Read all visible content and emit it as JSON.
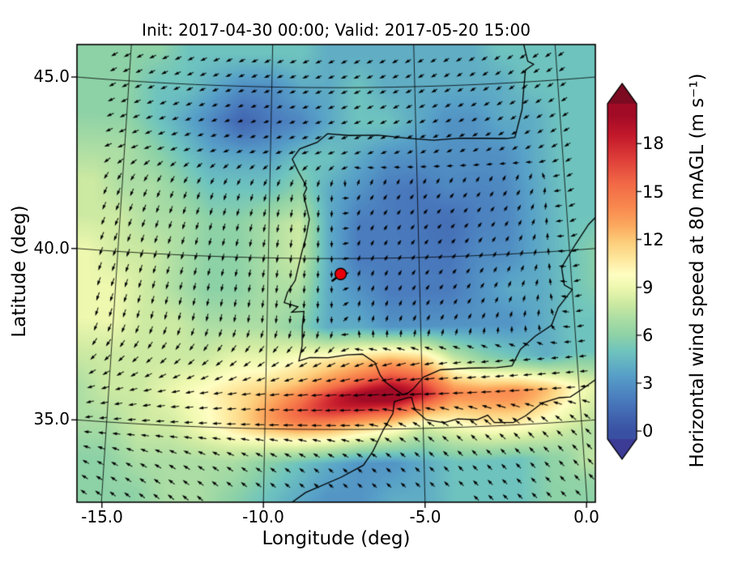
{
  "figure": {
    "title": "Init: 2017-04-30 00:00; Valid: 2017-05-20 15:00",
    "x_axis": {
      "label": "Longitude (deg)",
      "ticks": [
        "-15.0",
        "-10.0",
        "-5.0",
        "0.0"
      ]
    },
    "y_axis": {
      "label": "Latitude (deg)",
      "ticks": [
        "45.0",
        "40.0",
        "35.0"
      ]
    },
    "colorbar": {
      "label": "Horizontal wind speed at 80 mAGL (m s⁻¹)",
      "ticks": [
        "18",
        "15",
        "12",
        "9",
        "6",
        "3",
        "0"
      ]
    }
  },
  "chart_data": {
    "type": "heatmap",
    "title": "Init: 2017-04-30 00:00; Valid: 2017-05-20 15:00",
    "xlabel": "Longitude (deg)",
    "ylabel": "Latitude (deg)",
    "colorbar_label": "Horizontal wind speed at 80 mAGL (m s⁻¹)",
    "units": "m s⁻¹",
    "x_ticks": [
      -15.0,
      -10.0,
      -5.0,
      0.0
    ],
    "y_ticks": [
      35.0,
      40.0,
      45.0
    ],
    "lon_range": [
      -15.8,
      0.3
    ],
    "lat_range": [
      32.9,
      46.2
    ],
    "graticule_lon": [
      -15,
      -10,
      -5,
      0
    ],
    "graticule_lat": [
      35,
      40,
      45
    ],
    "colorbar_ticks": [
      0,
      3,
      6,
      9,
      12,
      15,
      18
    ],
    "colorbar_range": [
      0,
      19.8
    ],
    "colormap_stops": [
      [
        0,
        "#3a51a3"
      ],
      [
        2,
        "#4a7cbe"
      ],
      [
        3.5,
        "#57a0c8"
      ],
      [
        5,
        "#6fc4be"
      ],
      [
        6,
        "#8ed2a6"
      ],
      [
        7,
        "#abdda4"
      ],
      [
        8,
        "#cdeaa2"
      ],
      [
        9,
        "#eef8af"
      ],
      [
        9.8,
        "#fefec2"
      ],
      [
        10.8,
        "#fee79c"
      ],
      [
        11.8,
        "#fdcf7d"
      ],
      [
        12.8,
        "#fcab60"
      ],
      [
        14,
        "#f9894f"
      ],
      [
        15.5,
        "#f26946"
      ],
      [
        17,
        "#df3f3a"
      ],
      [
        18.5,
        "#c3192b"
      ],
      [
        19.8,
        "#a20b26"
      ]
    ],
    "over_color": "#7c0b22",
    "under_color": "#3c3b96",
    "grid_lon": [
      -16,
      -15,
      -14,
      -13,
      -12,
      -11,
      -10,
      -9,
      -8,
      -7,
      -6,
      -5,
      -4,
      -3,
      -2,
      -1,
      0,
      1
    ],
    "grid_lat": [
      46,
      45,
      44,
      43,
      42,
      41,
      40,
      39,
      38,
      37,
      36,
      35,
      34,
      33
    ],
    "wind_speed_ms": [
      [
        6,
        6,
        6,
        5,
        5,
        5,
        5,
        5,
        4,
        4,
        4,
        4,
        4,
        4,
        5,
        5,
        5,
        5
      ],
      [
        6,
        6,
        5,
        5,
        4,
        3,
        3,
        4,
        4,
        5,
        4,
        4,
        4,
        4,
        4,
        5,
        5,
        5
      ],
      [
        6,
        6,
        5,
        4,
        3,
        2,
        3,
        3,
        4,
        5,
        5,
        4,
        3,
        3,
        4,
        4,
        5,
        5
      ],
      [
        7,
        7,
        6,
        5,
        4,
        4,
        4,
        5,
        5,
        4,
        3,
        3,
        3,
        3,
        3,
        4,
        5,
        5
      ],
      [
        8,
        7,
        7,
        6,
        5,
        5,
        5,
        6,
        4,
        3,
        2,
        2,
        3,
        3,
        3,
        4,
        5,
        5
      ],
      [
        8,
        8,
        7,
        7,
        6,
        6,
        7,
        8,
        4,
        2,
        2,
        2,
        2,
        3,
        3,
        4,
        5,
        5
      ],
      [
        9,
        8,
        8,
        7,
        6,
        6,
        7,
        8,
        4,
        2,
        2,
        2,
        2,
        3,
        3,
        4,
        5,
        6
      ],
      [
        9,
        9,
        8,
        7,
        6,
        6,
        7,
        7,
        4,
        3,
        2,
        2,
        2,
        3,
        4,
        4,
        5,
        6
      ],
      [
        9,
        9,
        8,
        8,
        7,
        7,
        7,
        6,
        4,
        4,
        3,
        3,
        3,
        3,
        3,
        4,
        5,
        5
      ],
      [
        8,
        8,
        8,
        8,
        8,
        9,
        9,
        10,
        11,
        12,
        13,
        12,
        8,
        6,
        5,
        4,
        5,
        5
      ],
      [
        7,
        8,
        8,
        9,
        10,
        11,
        12,
        13,
        15,
        17,
        19,
        17,
        13,
        12,
        12,
        11,
        9,
        8
      ],
      [
        7,
        7,
        8,
        8,
        9,
        10,
        11,
        12,
        12,
        11,
        10,
        8,
        9,
        10,
        10,
        9,
        8,
        7
      ],
      [
        6,
        6,
        7,
        7,
        7,
        7,
        6,
        5,
        4,
        3,
        3,
        4,
        5,
        5,
        5,
        6,
        6,
        6
      ],
      [
        6,
        6,
        6,
        7,
        7,
        6,
        5,
        4,
        3,
        3,
        4,
        4,
        5,
        5,
        5,
        6,
        6,
        6
      ]
    ],
    "wind_dir_deg_math": [
      [
        210,
        208,
        206,
        205,
        204,
        203,
        203,
        202,
        202,
        203,
        204,
        205,
        206,
        207,
        208,
        208,
        207,
        206
      ],
      [
        208,
        206,
        205,
        204,
        203,
        202,
        202,
        201,
        201,
        202,
        203,
        204,
        205,
        206,
        207,
        207,
        206,
        205
      ],
      [
        206,
        205,
        204,
        203,
        202,
        201,
        201,
        200,
        200,
        201,
        202,
        203,
        204,
        205,
        206,
        206,
        205,
        204
      ],
      [
        205,
        204,
        203,
        202,
        201,
        200,
        200,
        199,
        199,
        200,
        201,
        202,
        203,
        204,
        205,
        205,
        204,
        203
      ],
      [
        245,
        245,
        246,
        247,
        248,
        250,
        252,
        258,
        262,
        55,
        50,
        48,
        45,
        45,
        48,
        55,
        200,
        200
      ],
      [
        248,
        248,
        249,
        250,
        252,
        254,
        256,
        262,
        265,
        60,
        50,
        45,
        42,
        45,
        50,
        60,
        200,
        195
      ],
      [
        250,
        250,
        251,
        252,
        254,
        256,
        258,
        263,
        267,
        65,
        55,
        48,
        45,
        48,
        55,
        65,
        195,
        190
      ],
      [
        252,
        252,
        253,
        254,
        256,
        258,
        260,
        265,
        268,
        70,
        60,
        50,
        48,
        50,
        60,
        70,
        190,
        188
      ],
      [
        254,
        254,
        255,
        256,
        258,
        260,
        262,
        266,
        268,
        80,
        70,
        60,
        55,
        60,
        70,
        80,
        188,
        186
      ],
      [
        230,
        228,
        226,
        224,
        222,
        220,
        215,
        210,
        205,
        200,
        195,
        190,
        188,
        186,
        185,
        184,
        184,
        183
      ],
      [
        200,
        198,
        196,
        194,
        192,
        190,
        188,
        186,
        185,
        184,
        183,
        182,
        181,
        180,
        180,
        180,
        180,
        180
      ],
      [
        190,
        188,
        186,
        184,
        183,
        182,
        181,
        180,
        179,
        178,
        150,
        145,
        140,
        138,
        136,
        135,
        134,
        133
      ],
      [
        160,
        158,
        156,
        154,
        152,
        150,
        148,
        145,
        142,
        140,
        138,
        136,
        135,
        134,
        133,
        132,
        131,
        130
      ],
      [
        150,
        148,
        146,
        145,
        144,
        143,
        142,
        141,
        140,
        139,
        138,
        137,
        136,
        135,
        134,
        133,
        132,
        131
      ]
    ],
    "marker": {
      "lon": -7.6,
      "lat": 39.55,
      "color": "#e8000b"
    }
  }
}
